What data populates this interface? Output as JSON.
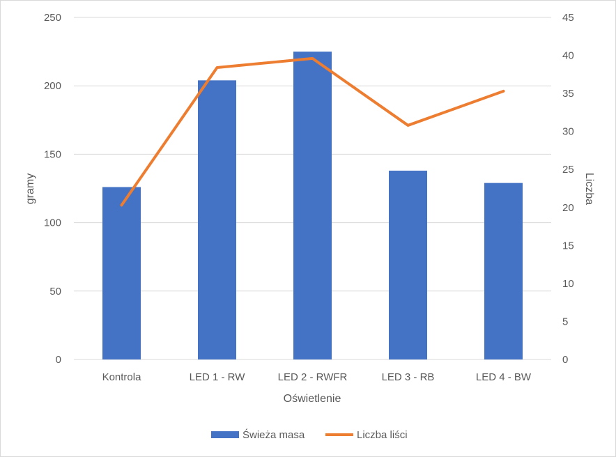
{
  "chart_data": {
    "type": "bar",
    "categories": [
      "Kontrola",
      "LED 1 - RW",
      "LED 2 - RWFR",
      "LED 3 - RB",
      "LED 4 - BW"
    ],
    "series": [
      {
        "name": "Świeża masa",
        "type": "bar",
        "axis": "left",
        "color": "#4472c4",
        "values": [
          126,
          204,
          225,
          138,
          129
        ]
      },
      {
        "name": "Liczba liści",
        "type": "line",
        "axis": "right",
        "color": "#ed7d31",
        "values": [
          20.3,
          38.4,
          39.6,
          30.8,
          35.3
        ]
      }
    ],
    "xlabel": "Oświetlenie",
    "ylabel": "gramy",
    "y2label": "Liczba",
    "ylim": [
      0,
      250
    ],
    "yticks": [
      "0",
      "50",
      "100",
      "150",
      "200",
      "250"
    ],
    "y2lim": [
      0,
      45
    ],
    "y2ticks": [
      "0",
      "5",
      "10",
      "15",
      "20",
      "25",
      "30",
      "35",
      "40",
      "45"
    ],
    "grid": true,
    "legend_position": "bottom"
  }
}
